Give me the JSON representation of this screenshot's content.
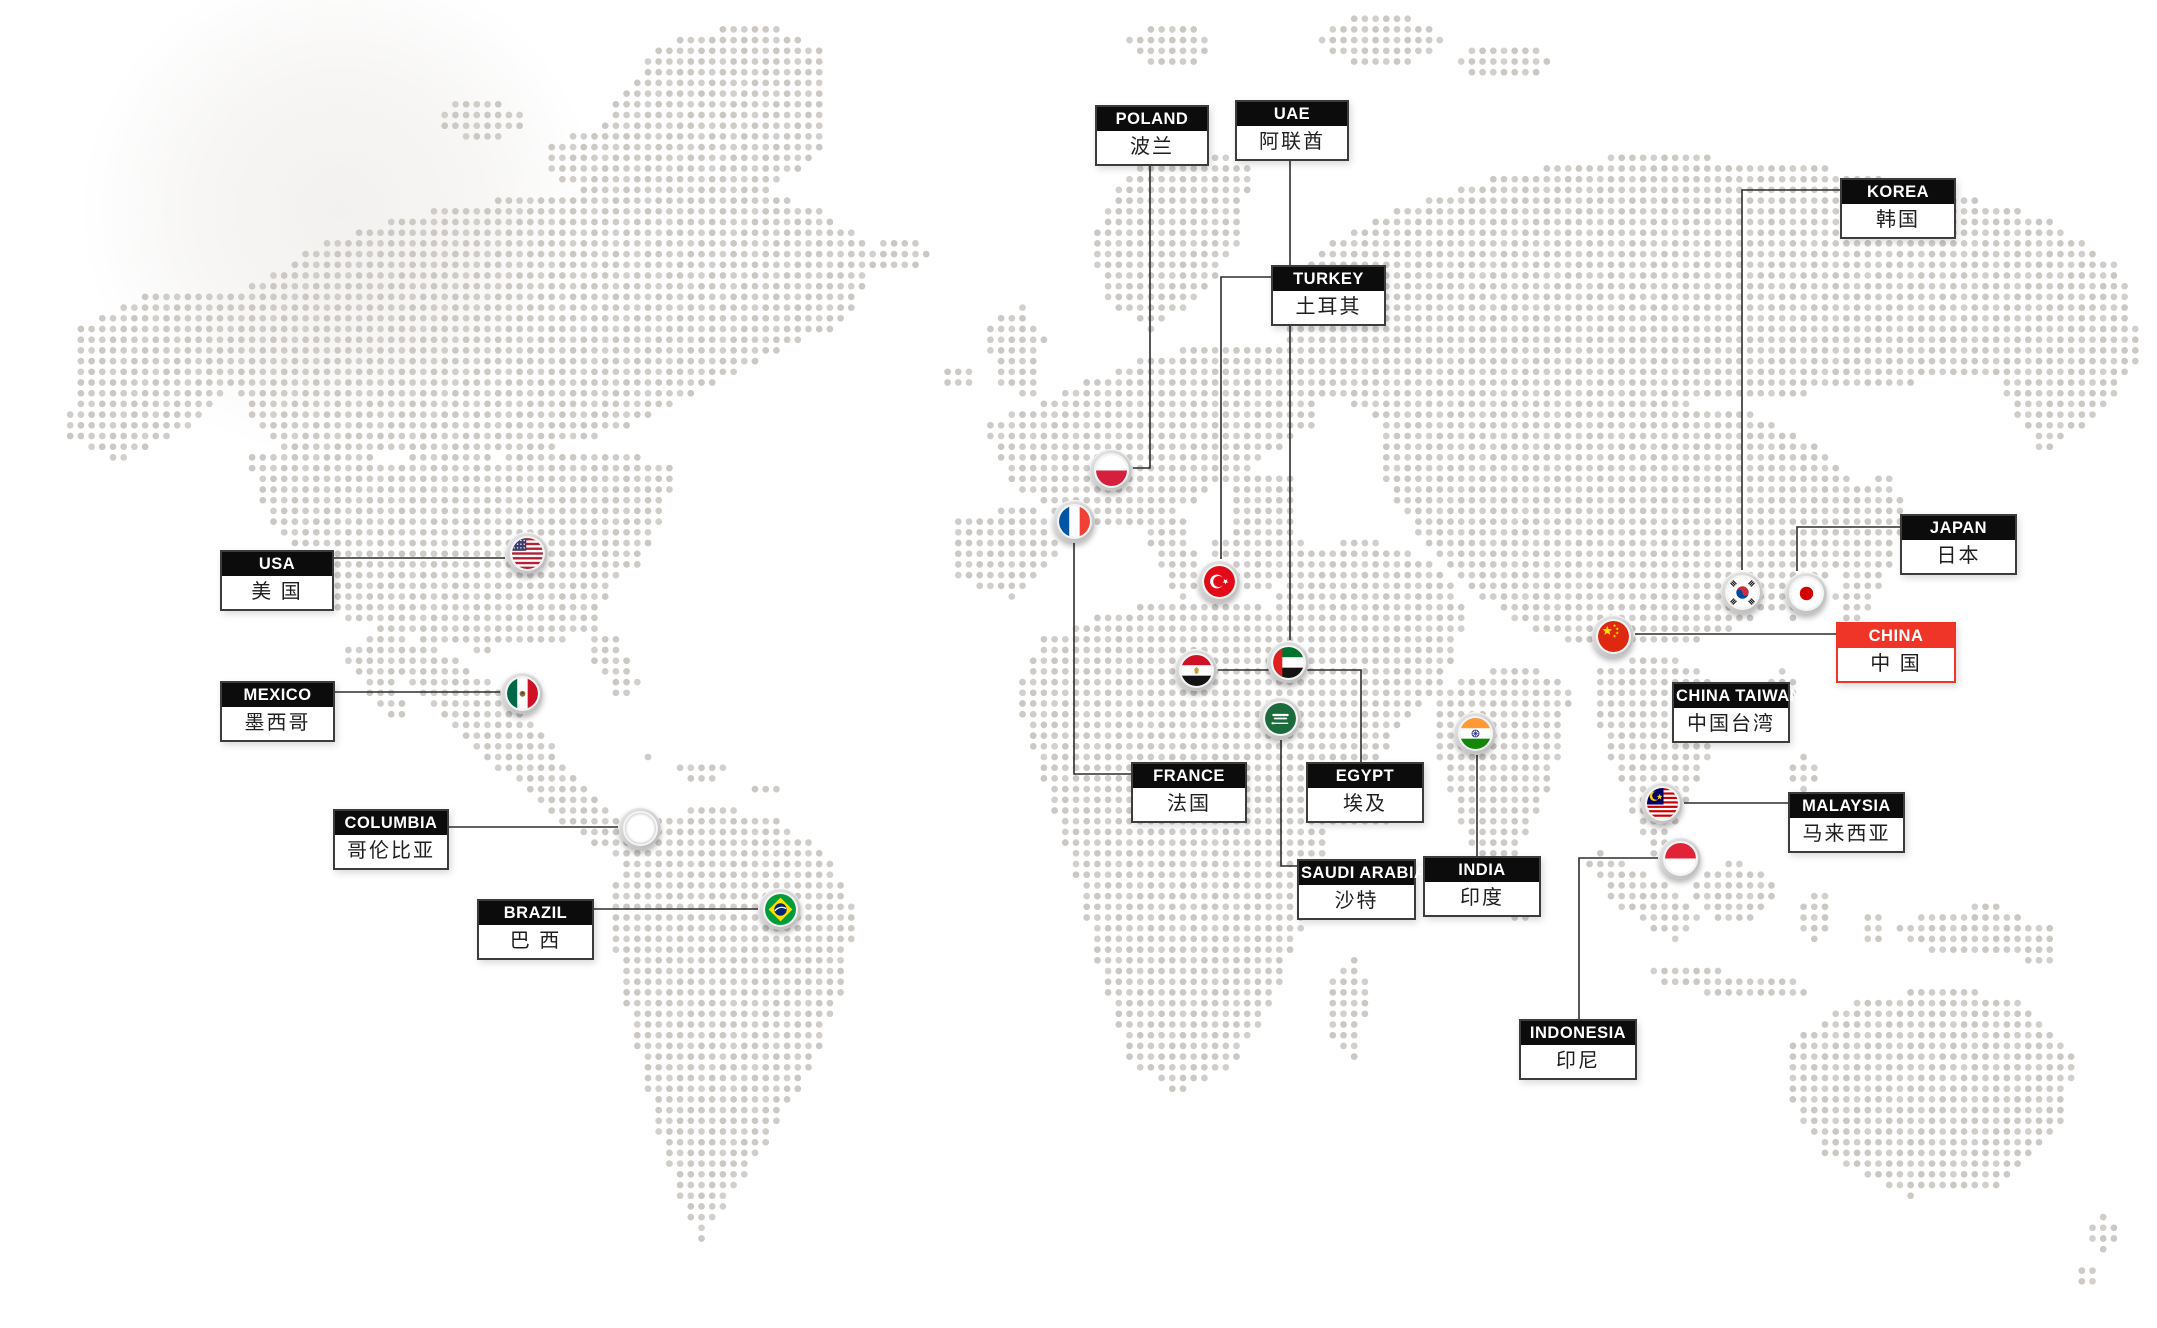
{
  "map": {
    "dot_color": "#c9c5c1",
    "background_color": "#ffffff",
    "connector_color": "#2e2e2e",
    "label_bar_color": "#0c0c0c",
    "label_border_color": "#3c3c3c",
    "highlight_color": "#ee3528"
  },
  "countries": [
    {
      "id": "poland",
      "en": "POLAND",
      "zh": "波兰",
      "flag_icon": "poland-flag-icon",
      "highlighted": false
    },
    {
      "id": "uae",
      "en": "UAE",
      "zh": "阿联酋",
      "flag_icon": "uae-flag-icon",
      "highlighted": false
    },
    {
      "id": "korea",
      "en": "KOREA",
      "zh": "韩国",
      "flag_icon": "korea-flag-icon",
      "highlighted": false
    },
    {
      "id": "turkey",
      "en": "TURKEY",
      "zh": "土耳其",
      "flag_icon": "turkey-flag-icon",
      "highlighted": false
    },
    {
      "id": "japan",
      "en": "JAPAN",
      "zh": "日本",
      "flag_icon": "japan-flag-icon",
      "highlighted": false
    },
    {
      "id": "usa",
      "en": "USA",
      "zh": "美 国",
      "flag_icon": "usa-flag-icon",
      "highlighted": false
    },
    {
      "id": "china",
      "en": "CHINA",
      "zh": "中 国",
      "flag_icon": "china-flag-icon",
      "highlighted": true
    },
    {
      "id": "mexico",
      "en": "MEXICO",
      "zh": "墨西哥",
      "flag_icon": "mexico-flag-icon",
      "highlighted": false
    },
    {
      "id": "china_taiwan",
      "en": "CHINA TAIWAN",
      "zh": "中国台湾",
      "flag_icon": null,
      "highlighted": false
    },
    {
      "id": "france",
      "en": "FRANCE",
      "zh": "法国",
      "flag_icon": "france-flag-icon",
      "highlighted": false
    },
    {
      "id": "egypt",
      "en": "EGYPT",
      "zh": "埃及",
      "flag_icon": "egypt-flag-icon",
      "highlighted": false
    },
    {
      "id": "malaysia",
      "en": "MALAYSIA",
      "zh": "马来西亚",
      "flag_icon": "malaysia-flag-icon",
      "highlighted": false
    },
    {
      "id": "columbia",
      "en": "COLUMBIA",
      "zh": "哥伦比亚",
      "flag_icon": "colombia-flag-icon",
      "highlighted": false
    },
    {
      "id": "saudi_arabia",
      "en": "SAUDI ARABIA",
      "zh": "沙特",
      "flag_icon": "saudi-arabia-flag-icon",
      "highlighted": false
    },
    {
      "id": "india",
      "en": "INDIA",
      "zh": "印度",
      "flag_icon": "india-flag-icon",
      "highlighted": false
    },
    {
      "id": "brazil",
      "en": "BRAZIL",
      "zh": "巴 西",
      "flag_icon": "brazil-flag-icon",
      "highlighted": false
    },
    {
      "id": "indonesia",
      "en": "INDONESIA",
      "zh": "印尼",
      "flag_icon": "indonesia-flag-icon",
      "highlighted": false
    }
  ]
}
